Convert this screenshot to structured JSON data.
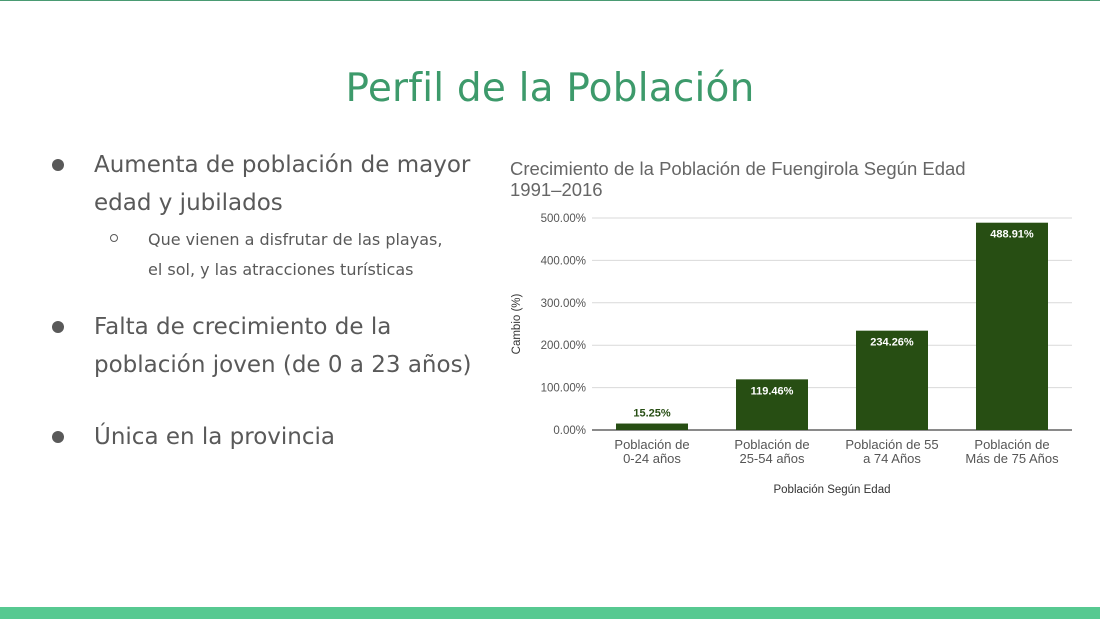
{
  "slide": {
    "title": "Perfil de la Población",
    "bullets": [
      {
        "lines": [
          "Aumenta de población de mayor",
          "edad y jubilados"
        ]
      },
      {
        "lines": [
          "Falta de crecimiento de la",
          "población joven (de 0 a 23 años)"
        ]
      },
      {
        "lines": [
          "Única en la provincia"
        ]
      }
    ],
    "sub_bullet": {
      "lines": [
        "Que vienen a disfrutar de las playas,",
        "el sol, y las atracciones turísticas"
      ]
    }
  },
  "colors": {
    "title": "#3d9a6b",
    "bar": "#274e13",
    "bottom_band": "#57c991"
  },
  "chart_data": {
    "type": "bar",
    "title_lines": [
      "Crecimiento de la Población de Fuengirola Según Edad",
      "1991–2016"
    ],
    "categories": [
      [
        "Población de",
        "0-24 años"
      ],
      [
        "Población de",
        "25-54 años"
      ],
      [
        "Población de 55",
        "a 74 Años"
      ],
      [
        "Población de",
        "Más de 75 Años"
      ]
    ],
    "values": [
      15.25,
      119.46,
      234.26,
      488.91
    ],
    "data_labels": [
      "15.25%",
      "119.46%",
      "234.26%",
      "488.91%"
    ],
    "xlabel": "Población Según Edad",
    "ylabel": "Cambio (%)",
    "ylim": [
      0,
      500
    ],
    "yticks": [
      0,
      100,
      200,
      300,
      400,
      500
    ],
    "ytick_labels": [
      "0.00%",
      "100.00%",
      "200.00%",
      "300.00%",
      "400.00%",
      "500.00%"
    ],
    "grid": true,
    "legend": "none"
  }
}
